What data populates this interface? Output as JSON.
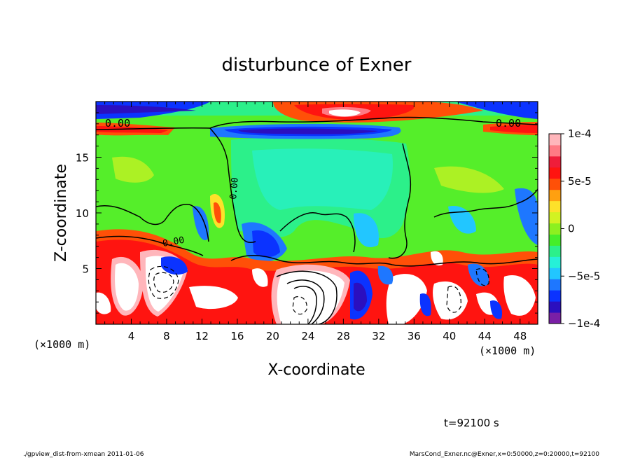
{
  "chart_data": {
    "type": "heatmap",
    "title": "disturbunce of Exner",
    "xlabel": "X-coordinate",
    "ylabel": "Z-coordinate",
    "x_unit": "(×1000 m)",
    "y_unit": "(×1000 m)",
    "xlim": [
      0,
      50
    ],
    "ylim": [
      0,
      20
    ],
    "x_ticks": [
      4,
      8,
      12,
      16,
      20,
      24,
      28,
      32,
      36,
      40,
      44,
      48
    ],
    "x_tick_labels": [
      "4",
      "8",
      "12",
      "16",
      "20",
      "24",
      "28",
      "32",
      "36",
      "40",
      "44",
      "48"
    ],
    "y_ticks": [
      5,
      10,
      15
    ],
    "y_tick_labels": [
      "5",
      "10",
      "15"
    ],
    "colorbar": {
      "vmin": -0.0001,
      "vmax": 0.0001,
      "ticks": [
        0.0001,
        5e-05,
        0,
        -5e-05,
        -0.0001
      ],
      "tick_labels": [
        "1e-4",
        "5e-5",
        "0",
        "−5e-5",
        "−1e-4"
      ],
      "colors": [
        "#7a1fa6",
        "#2b0fbf",
        "#0b33ff",
        "#1e77ff",
        "#22c6ff",
        "#26f0d8",
        "#2cf08a",
        "#45ee2a",
        "#8cf020",
        "#d2f222",
        "#fde12a",
        "#ffa010",
        "#ff5008",
        "#ff1410",
        "#ef1d3a",
        "#ff7a84",
        "#ffb6bb"
      ]
    },
    "contour_labels": [
      "0.00",
      "0.00",
      "0.00",
      "0.00"
    ],
    "annotation_time": "t=92100 s",
    "footer_left": "./gpview_dist-from-xmean  2011-01-06",
    "footer_right": "MarsCond_Exner.nc@Exner,x=0:50000,z=0:20000,t=92100"
  }
}
